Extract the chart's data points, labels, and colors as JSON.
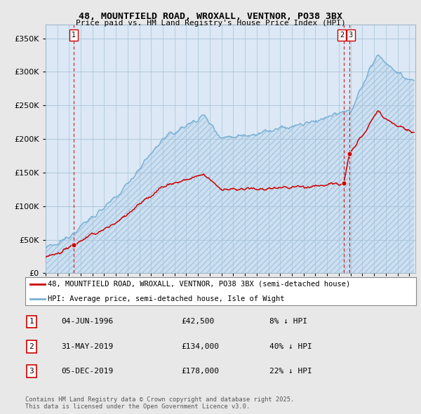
{
  "title": "48, MOUNTFIELD ROAD, WROXALL, VENTNOR, PO38 3BX",
  "subtitle": "Price paid vs. HM Land Registry's House Price Index (HPI)",
  "legend_property": "48, MOUNTFIELD ROAD, WROXALL, VENTNOR, PO38 3BX (semi-detached house)",
  "legend_hpi": "HPI: Average price, semi-detached house, Isle of Wight",
  "footnote": "Contains HM Land Registry data © Crown copyright and database right 2025.\nThis data is licensed under the Open Government Licence v3.0.",
  "property_color": "#cc0000",
  "hpi_color": "#7ab0d4",
  "sale_color": "#cc0000",
  "vline_color": "#cc0000",
  "background_color": "#e8e8e8",
  "plot_bg_color": "#dce8f5",
  "grid_color": "#b0c8e0",
  "ylim": [
    0,
    370000
  ],
  "xlim_start": 1994.0,
  "xlim_end": 2025.5,
  "sales": [
    {
      "year": 1996.42,
      "price": 42500,
      "label": "1"
    },
    {
      "year": 2019.41,
      "price": 134000,
      "label": "2"
    },
    {
      "year": 2019.92,
      "price": 178000,
      "label": "3"
    }
  ],
  "table_rows": [
    {
      "num": "1",
      "date": "04-JUN-1996",
      "price": "£42,500",
      "hpi": "8% ↓ HPI"
    },
    {
      "num": "2",
      "date": "31-MAY-2019",
      "price": "£134,000",
      "hpi": "40% ↓ HPI"
    },
    {
      "num": "3",
      "date": "05-DEC-2019",
      "price": "£178,000",
      "hpi": "22% ↓ HPI"
    }
  ]
}
